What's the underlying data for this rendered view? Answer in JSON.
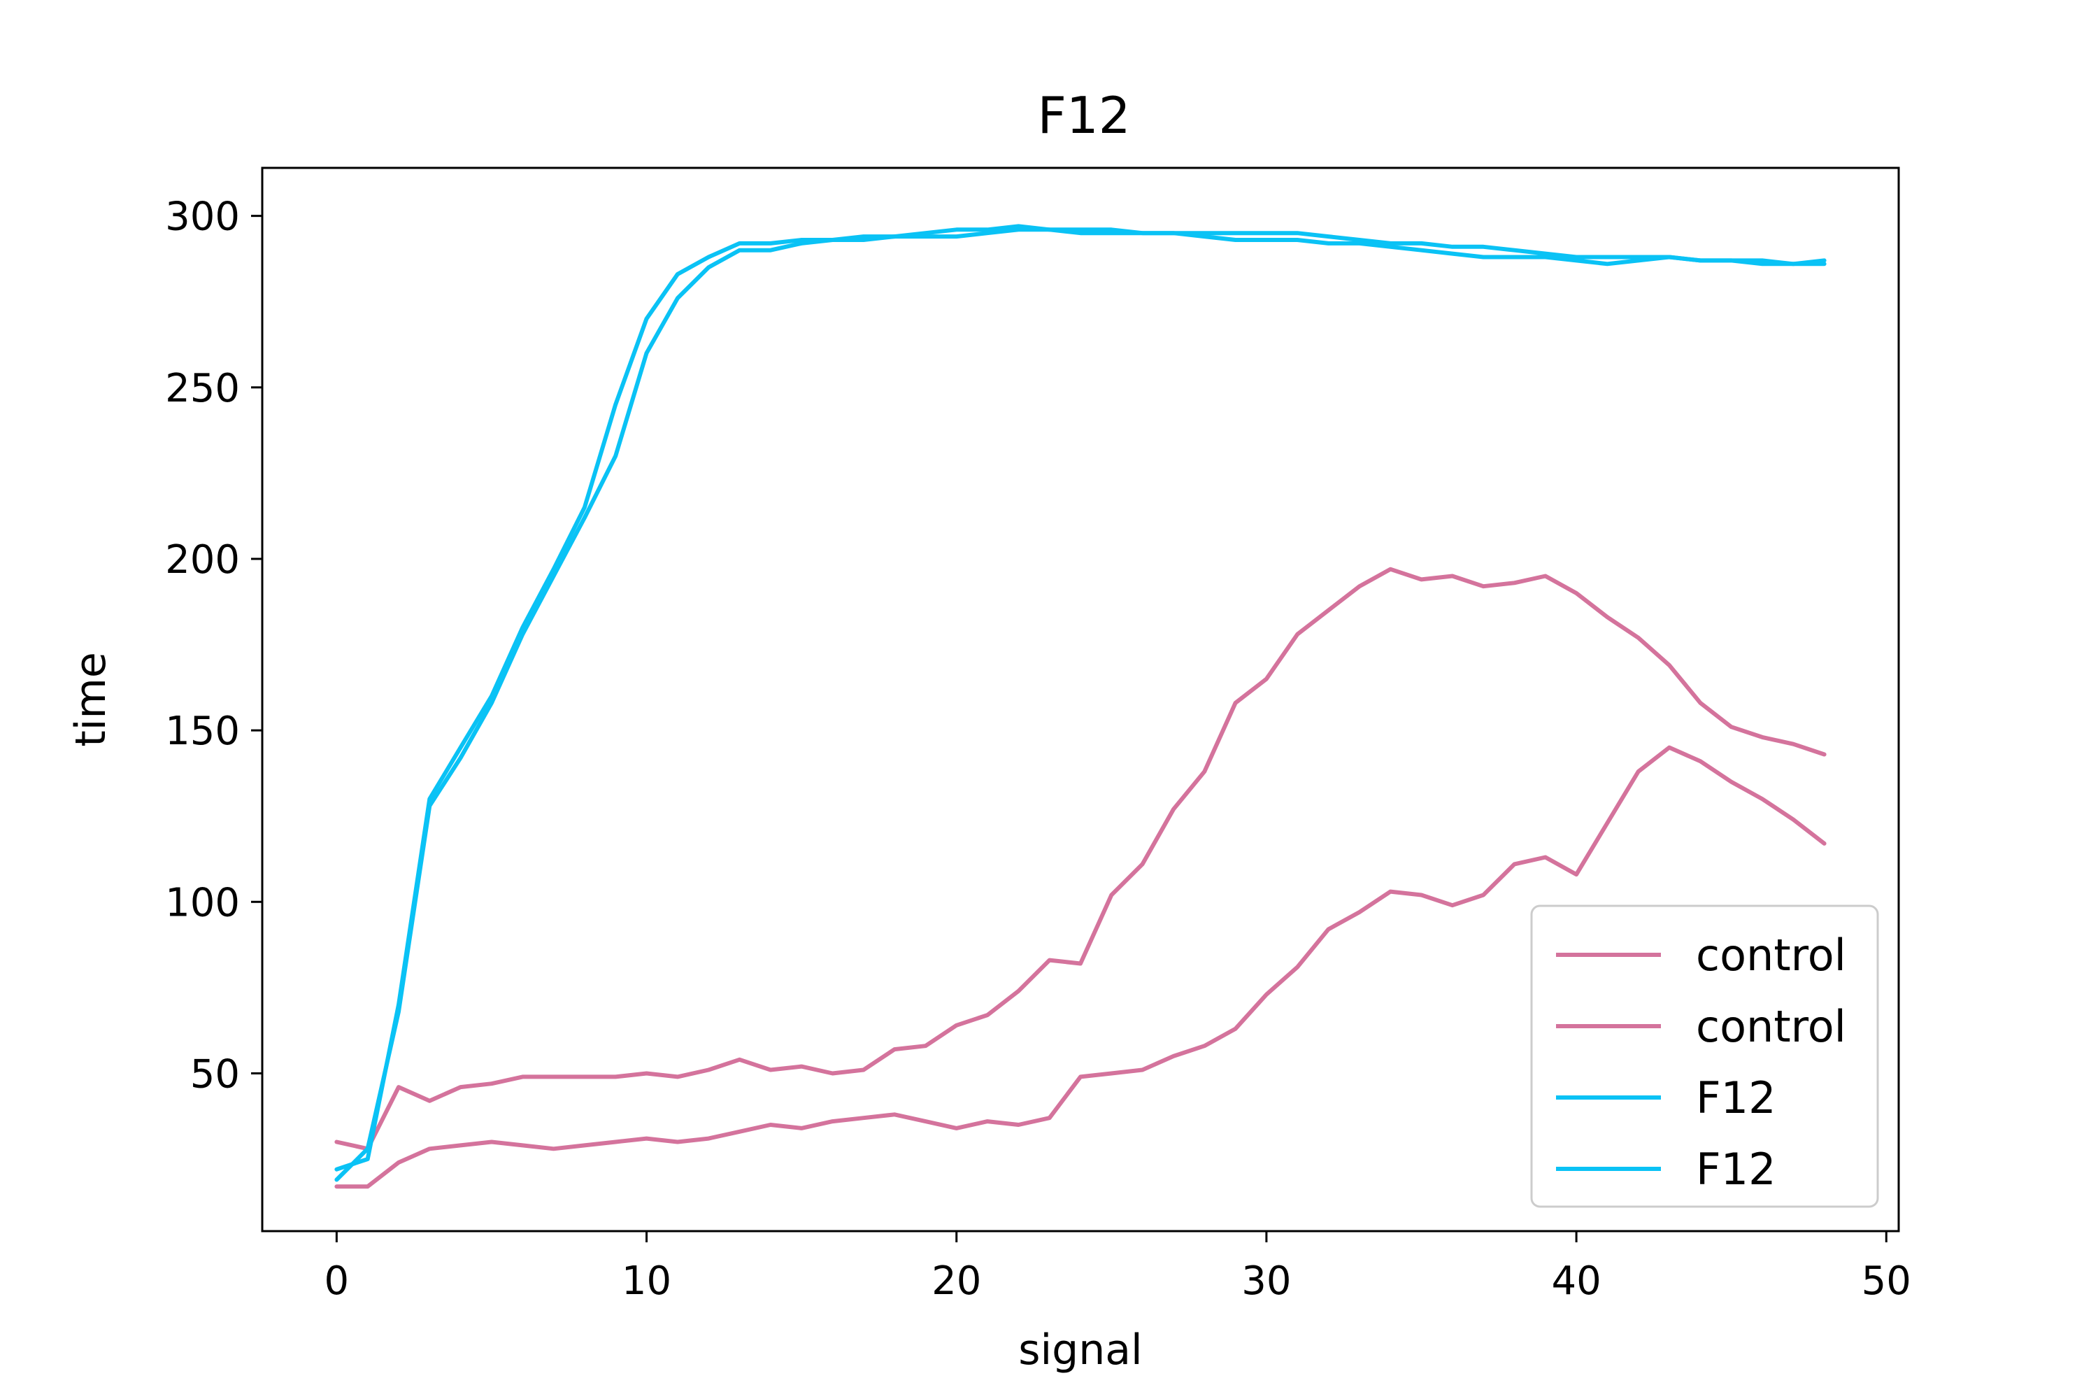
{
  "chart_data": {
    "type": "line",
    "title": "F12",
    "xlabel": "signal",
    "ylabel": "time",
    "xlim": [
      -2.4,
      50.4
    ],
    "ylim": [
      4,
      314
    ],
    "xticks": [
      0,
      10,
      20,
      30,
      40,
      50
    ],
    "yticks": [
      50,
      100,
      150,
      200,
      250,
      300
    ],
    "grid": false,
    "legend_position": "lower-right",
    "colors": {
      "control": "#d4739c",
      "F12": "#0ac2f5"
    },
    "series": [
      {
        "name": "control",
        "color": "#d4739c",
        "x": [
          0,
          1,
          2,
          3,
          4,
          5,
          6,
          7,
          8,
          9,
          10,
          11,
          12,
          13,
          14,
          15,
          16,
          17,
          18,
          19,
          20,
          21,
          22,
          23,
          24,
          25,
          26,
          27,
          28,
          29,
          30,
          31,
          32,
          33,
          34,
          35,
          36,
          37,
          38,
          39,
          40,
          41,
          42,
          43,
          44,
          45,
          46,
          47,
          48
        ],
        "y": [
          30,
          28,
          46,
          42,
          46,
          47,
          49,
          49,
          49,
          49,
          50,
          49,
          51,
          54,
          51,
          52,
          50,
          51,
          57,
          58,
          64,
          67,
          74,
          83,
          82,
          102,
          111,
          127,
          138,
          158,
          165,
          178,
          185,
          192,
          197,
          194,
          195,
          192,
          193,
          195,
          190,
          183,
          177,
          169,
          158,
          151,
          148,
          146,
          143
        ]
      },
      {
        "name": "control",
        "color": "#d4739c",
        "x": [
          0,
          1,
          2,
          3,
          4,
          5,
          6,
          7,
          8,
          9,
          10,
          11,
          12,
          13,
          14,
          15,
          16,
          17,
          18,
          19,
          20,
          21,
          22,
          23,
          24,
          25,
          26,
          27,
          28,
          29,
          30,
          31,
          32,
          33,
          34,
          35,
          36,
          37,
          38,
          39,
          40,
          41,
          42,
          43,
          44,
          45,
          46,
          47,
          48
        ],
        "y": [
          17,
          17,
          24,
          28,
          29,
          30,
          29,
          28,
          29,
          30,
          31,
          30,
          31,
          33,
          35,
          34,
          36,
          37,
          38,
          36,
          34,
          36,
          35,
          37,
          49,
          50,
          51,
          55,
          58,
          63,
          73,
          81,
          92,
          97,
          103,
          102,
          99,
          102,
          111,
          113,
          108,
          123,
          138,
          145,
          141,
          135,
          130,
          124,
          117
        ]
      },
      {
        "name": "F12",
        "color": "#0ac2f5",
        "x": [
          0,
          1,
          2,
          3,
          4,
          5,
          6,
          7,
          8,
          9,
          10,
          11,
          12,
          13,
          14,
          15,
          16,
          17,
          18,
          19,
          20,
          21,
          22,
          23,
          24,
          25,
          26,
          27,
          28,
          29,
          30,
          31,
          32,
          33,
          34,
          35,
          36,
          37,
          38,
          39,
          40,
          41,
          42,
          43,
          44,
          45,
          46,
          47,
          48
        ],
        "y": [
          22,
          25,
          70,
          130,
          145,
          160,
          180,
          197,
          215,
          245,
          270,
          283,
          288,
          292,
          292,
          293,
          293,
          294,
          294,
          294,
          294,
          295,
          296,
          296,
          295,
          295,
          295,
          295,
          295,
          295,
          295,
          295,
          294,
          293,
          292,
          292,
          291,
          291,
          290,
          289,
          288,
          288,
          288,
          288,
          287,
          287,
          287,
          286,
          286
        ]
      },
      {
        "name": "F12",
        "color": "#0ac2f5",
        "x": [
          0,
          1,
          2,
          3,
          4,
          5,
          6,
          7,
          8,
          9,
          10,
          11,
          12,
          13,
          14,
          15,
          16,
          17,
          18,
          19,
          20,
          21,
          22,
          23,
          24,
          25,
          26,
          27,
          28,
          29,
          30,
          31,
          32,
          33,
          34,
          35,
          36,
          37,
          38,
          39,
          40,
          41,
          42,
          43,
          44,
          45,
          46,
          47,
          48
        ],
        "y": [
          19,
          28,
          68,
          128,
          142,
          158,
          178,
          195,
          212,
          230,
          260,
          276,
          285,
          290,
          290,
          292,
          293,
          293,
          294,
          295,
          296,
          296,
          297,
          296,
          296,
          296,
          295,
          295,
          294,
          293,
          293,
          293,
          292,
          292,
          291,
          290,
          289,
          288,
          288,
          288,
          287,
          286,
          287,
          288,
          287,
          287,
          286,
          286,
          287
        ]
      }
    ]
  }
}
